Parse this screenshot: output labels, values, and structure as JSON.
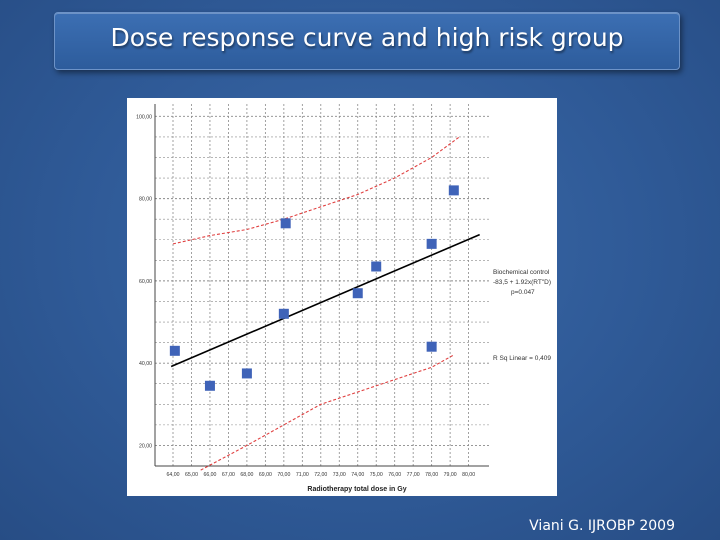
{
  "slide": {
    "title": "Dose response curve and high risk group",
    "caption": "Viani G. IJROBP 2009"
  },
  "colors": {
    "background": "#2f5a97",
    "points": "#3f63b8",
    "regression_line": "#000000",
    "ci_lines": "#e04040",
    "grid": "#8a8a8a"
  },
  "chart_data": {
    "type": "scatter",
    "xlabel": "Radiotherapy total dose in Gy",
    "ylabel": "",
    "xlim": [
      64,
      80
    ],
    "ylim": [
      15,
      103
    ],
    "x_ticks": [
      "64,00",
      "65,00",
      "66,00",
      "67,00",
      "68,00",
      "69,00",
      "70,00",
      "71,00",
      "72,00",
      "73,00",
      "74,00",
      "75,00",
      "76,00",
      "77,00",
      "78,00",
      "79,00",
      "80,00"
    ],
    "x_tick_values": [
      64,
      65,
      66,
      67,
      68,
      69,
      70,
      71,
      72,
      73,
      74,
      75,
      76,
      77,
      78,
      79,
      80
    ],
    "y_ticks": [
      "20,00",
      "40,00",
      "60,00",
      "80,00",
      "100,00"
    ],
    "y_tick_values": [
      20,
      40,
      60,
      80,
      100
    ],
    "grid": true,
    "series": [
      {
        "type": "scatter",
        "x": [
          64.1,
          66.0,
          68.0,
          70.0,
          70.1,
          74.0,
          75.0,
          78.0,
          78.0,
          79.2
        ],
        "y": [
          43,
          34.5,
          37.5,
          52,
          74,
          57,
          63.5,
          69,
          44,
          82
        ]
      }
    ],
    "regression": {
      "intercept": -83.5,
      "slope": 1.92,
      "x_range": [
        63.9,
        80.6
      ]
    },
    "ci_upper": {
      "x": [
        64,
        66,
        68,
        70,
        72,
        74,
        76,
        78,
        79.5
      ],
      "y": [
        69,
        71,
        72.5,
        75,
        78,
        81,
        85,
        90,
        95
      ]
    },
    "ci_lower": {
      "x": [
        65.5,
        68,
        70,
        72,
        74,
        76,
        78,
        79.2
      ],
      "y": [
        14,
        20,
        25,
        30,
        33,
        36,
        39,
        42
      ]
    },
    "annotations": {
      "equation_title": "Biochemical control",
      "equation": "-83,5 + 1.92x(RT\"D)",
      "p_value": "p=0.047",
      "r_squared": "R Sq Linear = 0,409"
    }
  }
}
